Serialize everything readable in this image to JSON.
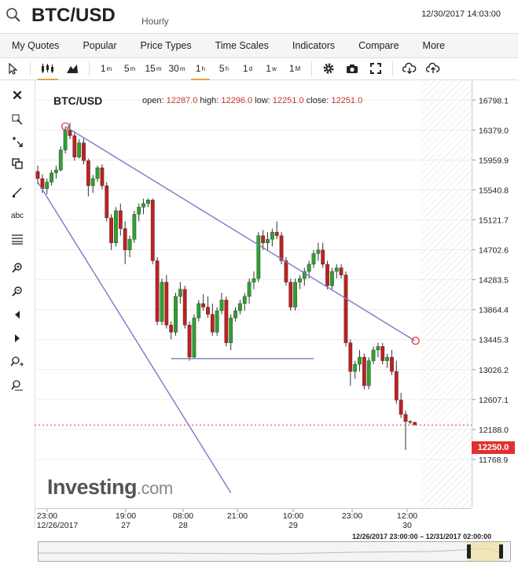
{
  "header": {
    "symbol": "BTC/USD",
    "period": "Hourly",
    "timestamp": "12/30/2017 14:03:00"
  },
  "menu": [
    "My Quotes",
    "Popular",
    "Price Types",
    "Time Scales",
    "Indicators",
    "Compare",
    "More"
  ],
  "toolbar": {
    "intervals": [
      {
        "l": "1",
        "s": "m"
      },
      {
        "l": "5",
        "s": "m"
      },
      {
        "l": "15",
        "s": "m"
      },
      {
        "l": "30",
        "s": "m"
      },
      {
        "l": "1",
        "s": "h"
      },
      {
        "l": "5",
        "s": "h"
      },
      {
        "l": "1",
        "s": "d"
      },
      {
        "l": "1",
        "s": "w"
      },
      {
        "l": "1",
        "s": "M"
      }
    ]
  },
  "legend": {
    "title": "BTC/USD",
    "open_label": "open:",
    "open": "12287.0",
    "high_label": "high:",
    "high": "12296.0",
    "low_label": "low:",
    "low": "12251.0",
    "close_label": "close:",
    "close": "12251.0"
  },
  "last_price": "12250.0",
  "range_text": "12/26/2017 23:00:00 – 12/31/2017 02:00:00",
  "watermark": {
    "brand": "Investing",
    "suffix": ".com"
  },
  "colors": {
    "up": "#2ea02e",
    "down": "#c0201e",
    "trend": "#7a7ac8",
    "accent": "#e8a33a"
  },
  "chart_data": {
    "type": "candlestick",
    "title": "BTC/USD",
    "ylim": [
      11350,
      16900
    ],
    "y_ticks": [
      "16798.1",
      "16379.0",
      "15959.9",
      "15540.8",
      "15121.7",
      "14702.6",
      "14283.5",
      "13864.4",
      "13445.3",
      "13026.2",
      "12607.1",
      "12188.0",
      "11768.9"
    ],
    "x_ticks": [
      {
        "t": "23:00",
        "d": "12/26/2017"
      },
      {
        "t": "19:00",
        "d": "27"
      },
      {
        "t": "08:00",
        "d": "28"
      },
      {
        "t": "21:00",
        "d": ""
      },
      {
        "t": "10:00",
        "d": "29"
      },
      {
        "t": "23:00",
        "d": ""
      },
      {
        "t": "12:00",
        "d": "30"
      }
    ],
    "candles": [
      [
        15800,
        15880,
        15620,
        15700
      ],
      [
        15700,
        15760,
        15500,
        15560
      ],
      [
        15560,
        15700,
        15480,
        15650
      ],
      [
        15650,
        15820,
        15600,
        15780
      ],
      [
        15780,
        15880,
        15700,
        15820
      ],
      [
        15820,
        16150,
        15800,
        16100
      ],
      [
        16100,
        16420,
        16050,
        16380
      ],
      [
        16380,
        16480,
        16250,
        16300
      ],
      [
        16300,
        16360,
        15950,
        16000
      ],
      [
        16000,
        16250,
        15980,
        16200
      ],
      [
        16200,
        16260,
        15900,
        15950
      ],
      [
        15950,
        15980,
        15450,
        15600
      ],
      [
        15600,
        15750,
        15500,
        15700
      ],
      [
        15700,
        15880,
        15650,
        15850
      ],
      [
        15850,
        15900,
        15550,
        15600
      ],
      [
        15600,
        15650,
        15100,
        15150
      ],
      [
        15150,
        15200,
        14700,
        14800
      ],
      [
        14800,
        15300,
        14750,
        15250
      ],
      [
        15250,
        15350,
        14900,
        15000
      ],
      [
        15000,
        15100,
        14500,
        14700
      ],
      [
        14700,
        14900,
        14600,
        14850
      ],
      [
        14850,
        15250,
        14800,
        15200
      ],
      [
        15200,
        15350,
        15100,
        15300
      ],
      [
        15300,
        15420,
        15200,
        15350
      ],
      [
        15350,
        15420,
        15300,
        15400
      ],
      [
        15400,
        15420,
        14500,
        14550
      ],
      [
        14550,
        14600,
        13650,
        13700
      ],
      [
        13700,
        14300,
        13650,
        14250
      ],
      [
        14250,
        14350,
        13600,
        13650
      ],
      [
        13650,
        13700,
        13450,
        13550
      ],
      [
        13550,
        14100,
        13500,
        14050
      ],
      [
        14050,
        14250,
        13950,
        14150
      ],
      [
        14150,
        14200,
        13600,
        13650
      ],
      [
        13650,
        13700,
        13150,
        13200
      ],
      [
        13200,
        13800,
        13180,
        13750
      ],
      [
        13750,
        14000,
        13700,
        13950
      ],
      [
        13950,
        14080,
        13850,
        13900
      ],
      [
        13900,
        14050,
        13750,
        13800
      ],
      [
        13800,
        13950,
        13500,
        13550
      ],
      [
        13550,
        13900,
        13500,
        13850
      ],
      [
        13850,
        14100,
        13800,
        14000
      ],
      [
        14000,
        14050,
        13350,
        13400
      ],
      [
        13400,
        13800,
        13300,
        13750
      ],
      [
        13750,
        13900,
        13700,
        13850
      ],
      [
        13850,
        14000,
        13800,
        13950
      ],
      [
        13950,
        14100,
        13850,
        14050
      ],
      [
        14050,
        14300,
        13950,
        14250
      ],
      [
        14250,
        14400,
        14150,
        14300
      ],
      [
        14300,
        14950,
        14250,
        14900
      ],
      [
        14900,
        14980,
        14700,
        14800
      ],
      [
        14800,
        14950,
        14700,
        14850
      ],
      [
        14850,
        15000,
        14750,
        14950
      ],
      [
        14950,
        15100,
        14850,
        14900
      ],
      [
        14900,
        14950,
        14500,
        14550
      ],
      [
        14550,
        14600,
        14200,
        14250
      ],
      [
        14250,
        14300,
        13850,
        13900
      ],
      [
        13900,
        14300,
        13850,
        14250
      ],
      [
        14250,
        14350,
        14150,
        14300
      ],
      [
        14300,
        14450,
        14200,
        14400
      ],
      [
        14400,
        14550,
        14300,
        14500
      ],
      [
        14500,
        14700,
        14450,
        14650
      ],
      [
        14650,
        14800,
        14550,
        14700
      ],
      [
        14700,
        14800,
        14450,
        14500
      ],
      [
        14500,
        14550,
        14150,
        14200
      ],
      [
        14200,
        14450,
        14150,
        14400
      ],
      [
        14400,
        14500,
        14300,
        14450
      ],
      [
        14450,
        14500,
        14300,
        14350
      ],
      [
        14350,
        14400,
        13350,
        13400
      ],
      [
        13400,
        13450,
        12800,
        13000
      ],
      [
        13000,
        13150,
        12900,
        13100
      ],
      [
        13100,
        13300,
        13000,
        13200
      ],
      [
        13200,
        13250,
        12750,
        12800
      ],
      [
        12800,
        13200,
        12750,
        13150
      ],
      [
        13150,
        13350,
        13100,
        13300
      ],
      [
        13300,
        13400,
        13200,
        13350
      ],
      [
        13350,
        13400,
        13100,
        13150
      ],
      [
        13150,
        13250,
        13050,
        13200
      ],
      [
        13200,
        13300,
        12950,
        13000
      ],
      [
        13000,
        13150,
        12550,
        12600
      ],
      [
        12600,
        12700,
        12350,
        12400
      ],
      [
        12400,
        12450,
        11900,
        12300
      ],
      [
        12300,
        12320,
        12260,
        12287
      ],
      [
        12287,
        12296,
        12251,
        12251
      ]
    ],
    "trendlines": [
      {
        "from": [
          0,
          15650
        ],
        "to": [
          42,
          11300
        ]
      },
      {
        "from": [
          6,
          16430
        ],
        "to": [
          82,
          13430
        ]
      },
      {
        "from": [
          29,
          13180
        ],
        "to": [
          60,
          13180
        ]
      }
    ]
  }
}
